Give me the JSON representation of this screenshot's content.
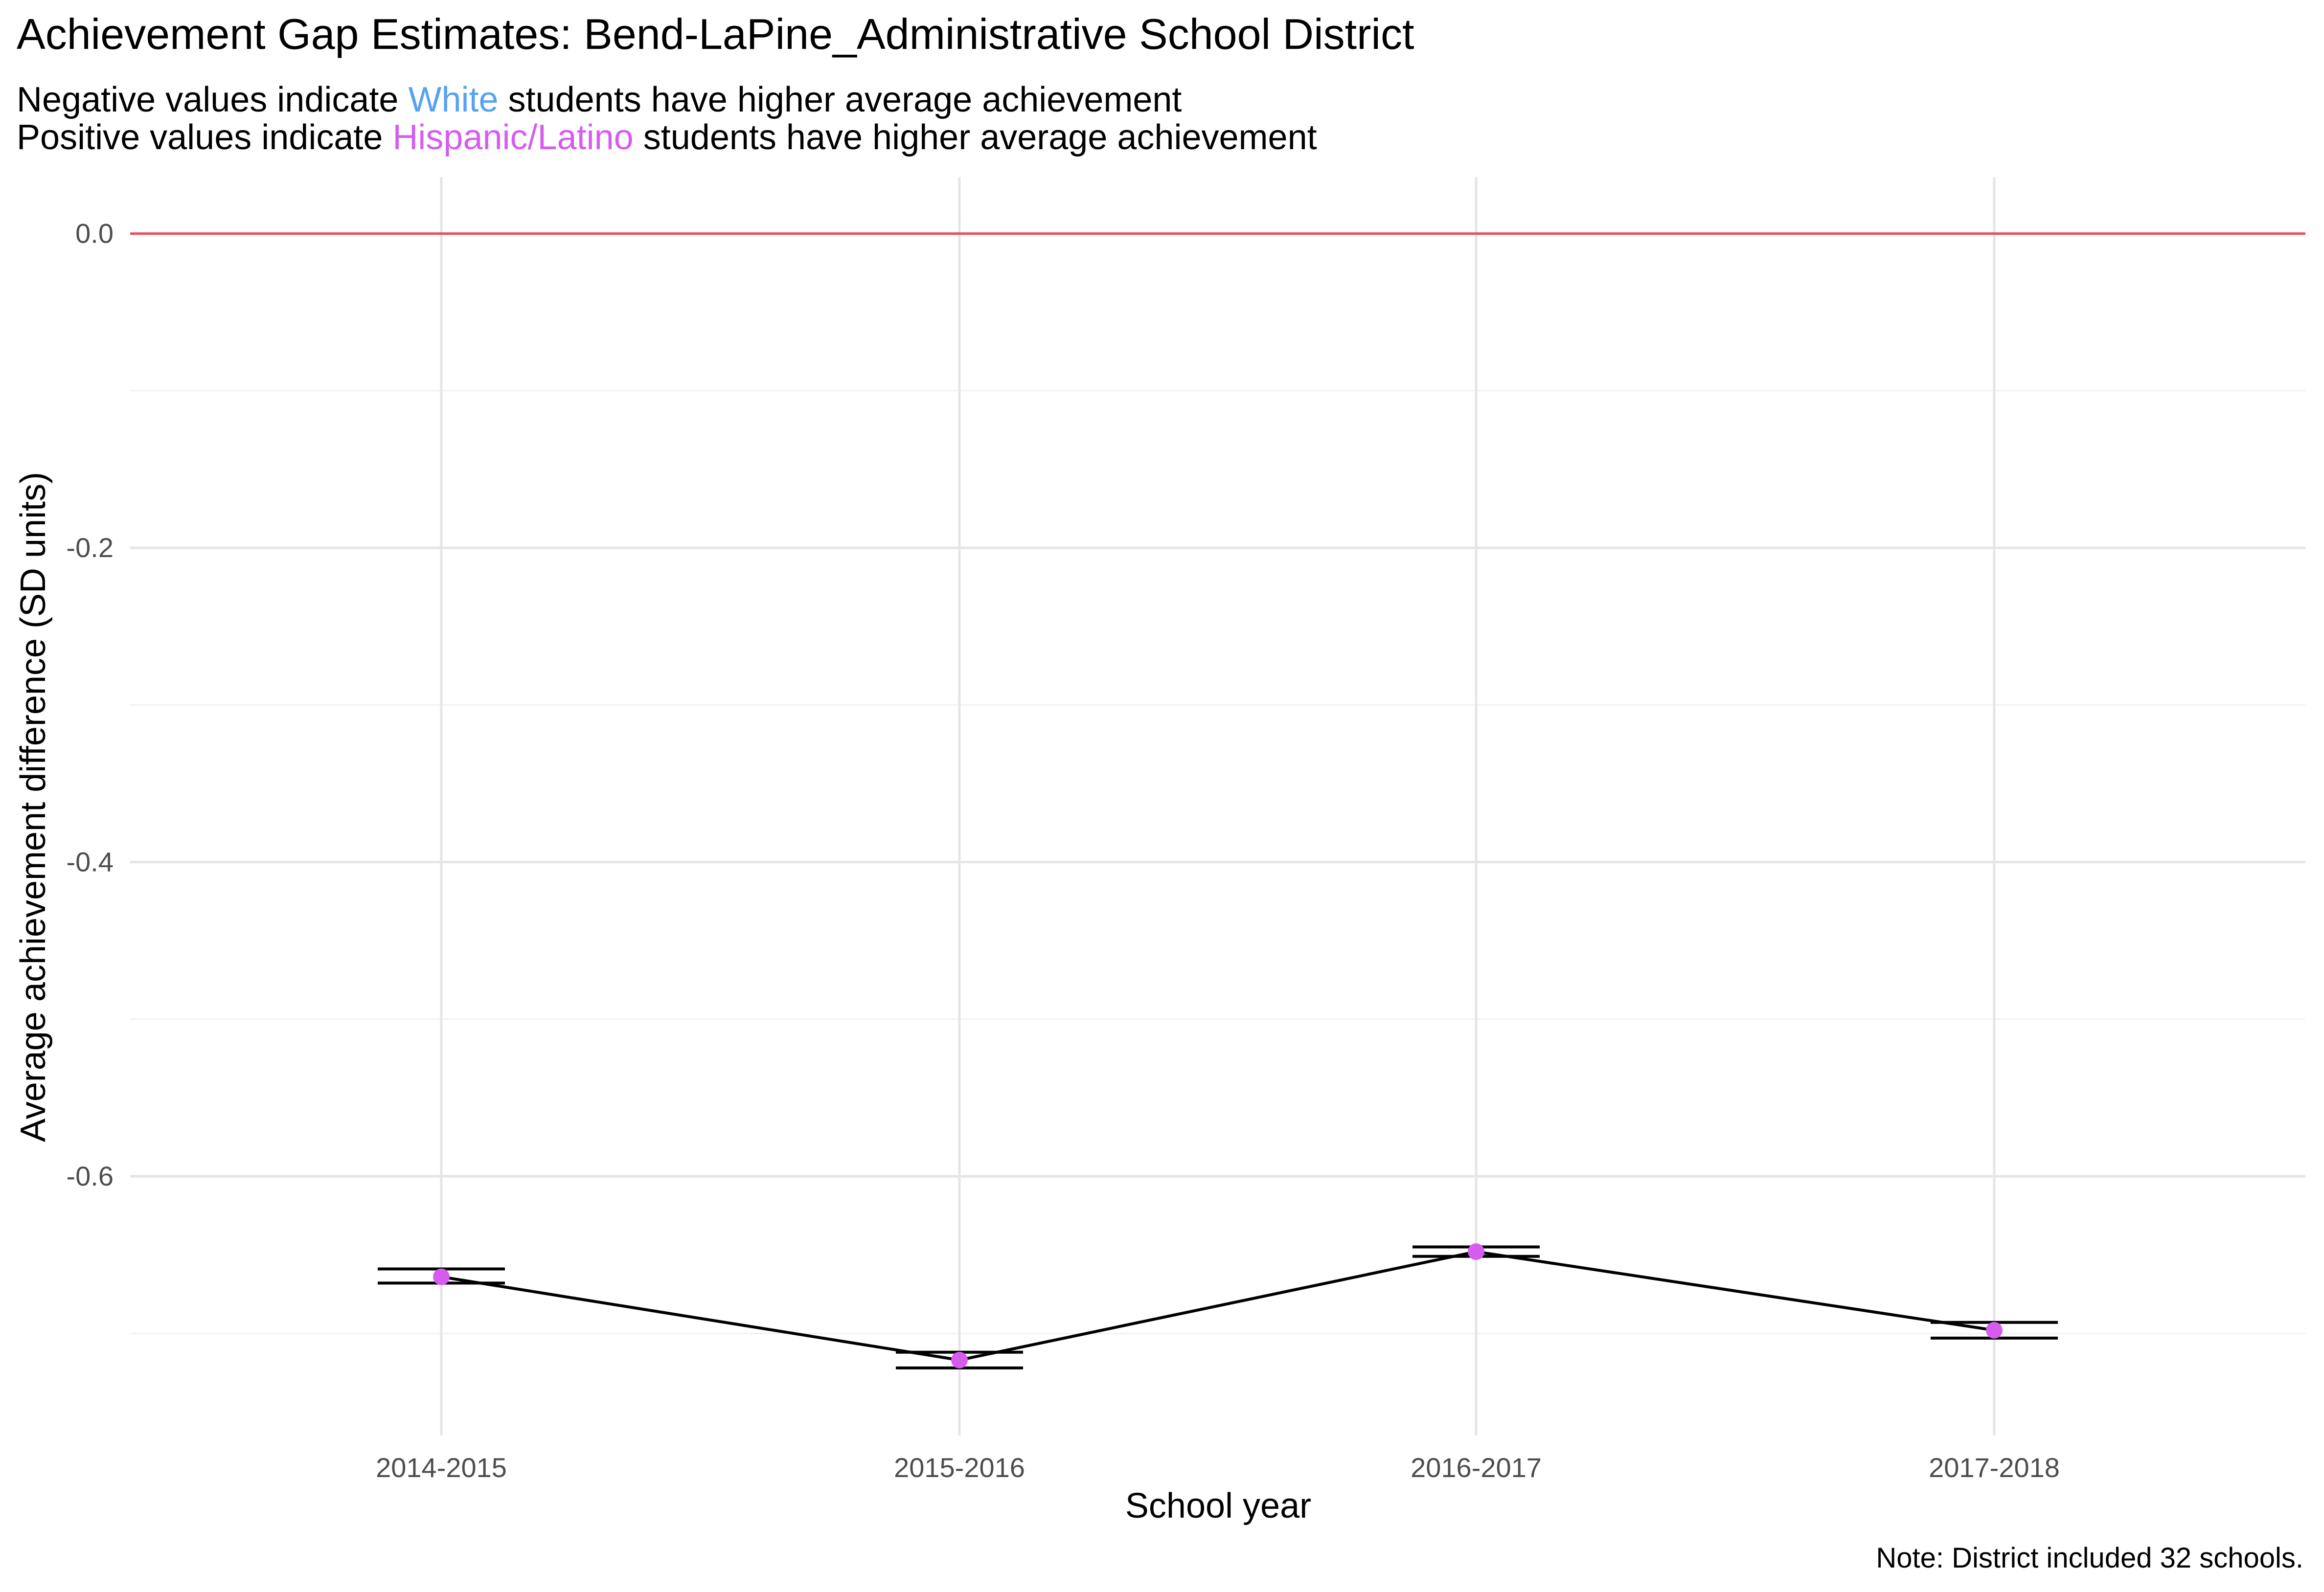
{
  "chart_data": {
    "type": "line",
    "title": "Achievement Gap Estimates: Bend-LaPine_Administrative School District",
    "subtitle": [
      {
        "parts": [
          {
            "text": "Negative values indicate ",
            "color": "#000000"
          },
          {
            "text": "White",
            "color": "#56a1f2"
          },
          {
            "text": " students have higher average achievement",
            "color": "#000000"
          }
        ]
      },
      {
        "parts": [
          {
            "text": "Positive values indicate ",
            "color": "#000000"
          },
          {
            "text": "Hispanic/Latino",
            "color": "#d65cf0"
          },
          {
            "text": " students have higher average achievement",
            "color": "#000000"
          }
        ]
      }
    ],
    "xlabel": "School year",
    "ylabel": "Average achievement difference (SD units)",
    "caption": "Note: District included 32 schools.",
    "categories": [
      "2014-2015",
      "2015-2016",
      "2016-2017",
      "2017-2018"
    ],
    "values": [
      -0.664,
      -0.717,
      -0.648,
      -0.698
    ],
    "error_low": [
      -0.668,
      -0.722,
      -0.651,
      -0.703
    ],
    "error_high": [
      -0.659,
      -0.712,
      -0.645,
      -0.693
    ],
    "ylim": [
      -0.765,
      0.036
    ],
    "yticks": [
      0.0,
      -0.2,
      -0.4,
      -0.6
    ],
    "ytick_labels": [
      "0.0",
      "-0.2",
      "-0.4",
      "-0.6"
    ],
    "reference_line": 0,
    "grid": true,
    "legend": "none",
    "colors": {
      "point": "#d65cf0",
      "line": "#000000",
      "reference": "#e8505b",
      "grid_major": "#e5e5e5",
      "grid_minor": "#f2f2f2",
      "tick_text": "#4d4d4d"
    }
  }
}
